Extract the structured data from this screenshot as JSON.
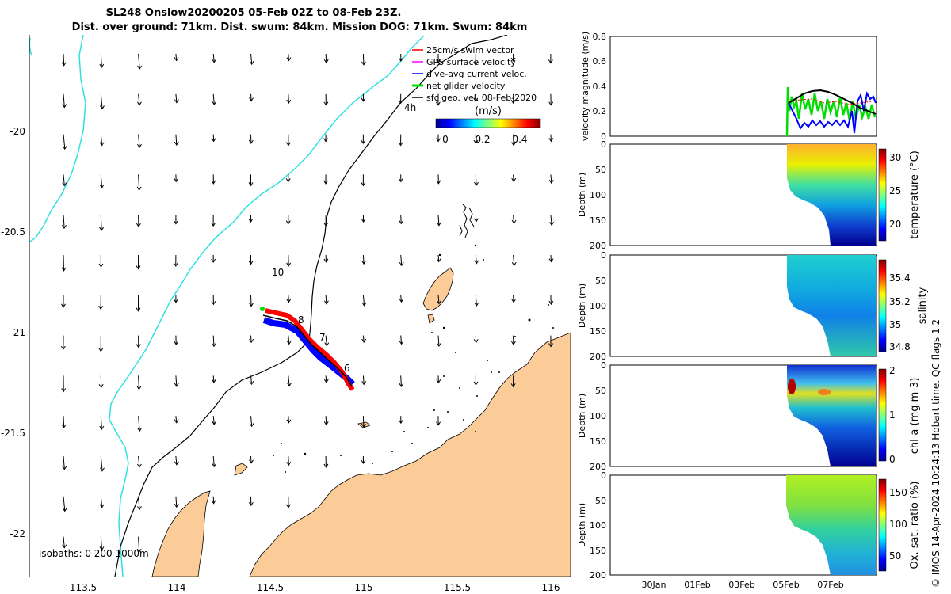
{
  "title_line1": "SL248 Onslow20200205 05-Feb 02Z to 08-Feb 23Z.",
  "title_line2": "Dist. over ground: 71km. Dist. swum: 84km. Mission DOG: 71km. Swum: 84km",
  "copyright": "© IMOS 14-Apr-2024 10:24:13 Hobart time. QC flags 1  2",
  "chart_data": [
    {
      "type": "map",
      "x_ticks": [
        113.5,
        114,
        114.5,
        115,
        115.5,
        116
      ],
      "y_ticks": [
        -20,
        -20.5,
        -21,
        -21.5,
        -22
      ],
      "xlim": [
        113.2,
        116.1
      ],
      "ylim": [
        -22.2,
        -19.5
      ],
      "legend": [
        {
          "label": "25cm/s swim vector",
          "color": "#ff0000"
        },
        {
          "label": "GPS surface velocity",
          "color": "#ff00ff"
        },
        {
          "label": "dive-avg current veloc.",
          "color": "#0000ff"
        },
        {
          "label": "net glider velocity",
          "color": "#00dd00"
        },
        {
          "label": "sfc geo. vel. 08-Feb-2020",
          "color": "#000000"
        }
      ],
      "colorbar": {
        "label": "(m/s)",
        "ticks": [
          "0",
          "0.2",
          "0.4"
        ],
        "range": [
          0,
          0.5
        ]
      },
      "isobath_label": "isobaths: 0   200  1000m",
      "track_labels": [
        "10",
        "8",
        "7",
        "6",
        "4h"
      ],
      "colors": {
        "land": "#fbcc98",
        "isobath_1000": "#30e0e0",
        "isobath_200": "#000000"
      }
    },
    {
      "type": "line",
      "ylabel": "velocity magnitude (m/s)",
      "y_ticks": [
        "0",
        "0.2",
        "0.4",
        "0.6",
        "0.8"
      ],
      "ylim": [
        0,
        0.8
      ],
      "series_colors": [
        "#00dd00",
        "#0000ff",
        "#000000",
        "#ff0000"
      ]
    },
    {
      "type": "heatmap",
      "ylabel": "Depth (m)",
      "y_ticks": [
        "0",
        "50",
        "100",
        "150",
        "200"
      ],
      "colorbar_label": "temperature (°C)",
      "colorbar_ticks": [
        "30",
        "25",
        "20"
      ]
    },
    {
      "type": "heatmap",
      "ylabel": "Depth (m)",
      "y_ticks": [
        "0",
        "50",
        "100",
        "150",
        "200"
      ],
      "colorbar_label": "salinity",
      "colorbar_ticks": [
        "35.4",
        "35.2",
        "35",
        "34.8"
      ]
    },
    {
      "type": "heatmap",
      "ylabel": "Depth (m)",
      "y_ticks": [
        "0",
        "50",
        "100",
        "150",
        "200"
      ],
      "colorbar_label": "chl-a (mg m-3)",
      "colorbar_ticks": [
        "2",
        "1",
        "0"
      ]
    },
    {
      "type": "heatmap",
      "ylabel": "Depth (m)",
      "y_ticks": [
        "0",
        "50",
        "100",
        "150",
        "200"
      ],
      "colorbar_label": "Ox. sat. ratio (%)",
      "colorbar_ticks": [
        "150",
        "100",
        "50"
      ],
      "x_ticks": [
        "30Jan",
        "01Feb",
        "03Feb",
        "05Feb",
        "07Feb"
      ]
    }
  ]
}
